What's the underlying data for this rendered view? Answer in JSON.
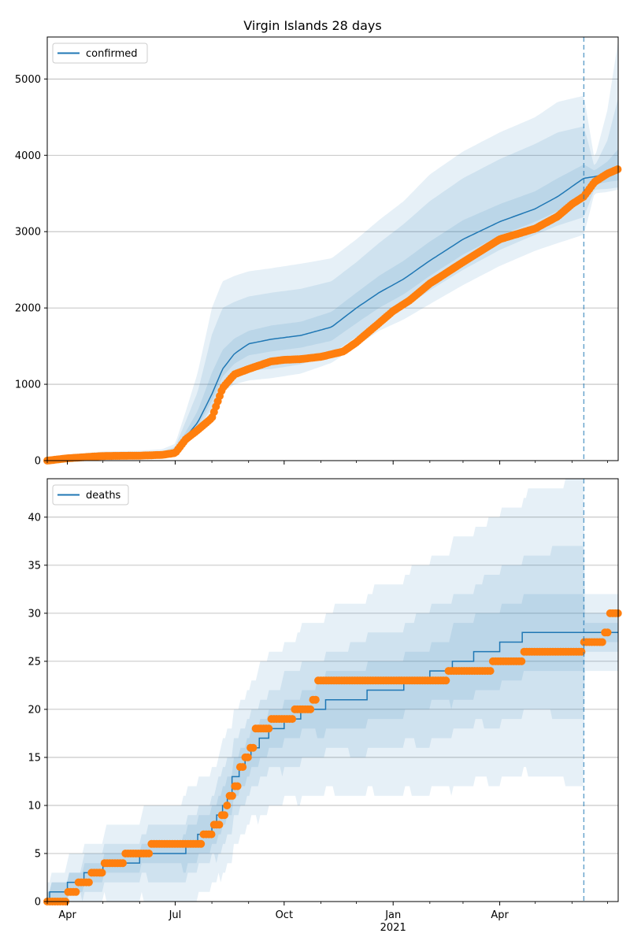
{
  "title": "Virgin Islands 28 days",
  "colors": {
    "model_line": "#1f77b4",
    "observed": "#ff7f0e",
    "band": "#1f77b4",
    "forecast_divider": "#1f77b4",
    "grid": "#b0b0b0"
  },
  "x_tick_labels": [
    {
      "date": "2020-04-01",
      "label": "Apr",
      "sub": ""
    },
    {
      "date": "2020-07-01",
      "label": "Jul",
      "sub": ""
    },
    {
      "date": "2020-10-01",
      "label": "Oct",
      "sub": ""
    },
    {
      "date": "2021-01-01",
      "label": "Jan",
      "sub": "2021"
    },
    {
      "date": "2021-04-01",
      "label": "Apr",
      "sub": ""
    }
  ],
  "x_minor_tick_dates": [
    "2020-03-15",
    "2020-05-01",
    "2020-06-01",
    "2020-08-01",
    "2020-09-01",
    "2020-11-01",
    "2020-12-01",
    "2021-02-01",
    "2021-03-01",
    "2021-05-01",
    "2021-06-01",
    "2021-07-01"
  ],
  "chart_data": [
    {
      "type": "line",
      "name": "confirmed",
      "legend": {
        "label": "confirmed",
        "placement": "upper-left"
      },
      "xlim": [
        "2020-03-15",
        "2021-07-10"
      ],
      "ylim": [
        0,
        5550
      ],
      "yticks": [
        0,
        1000,
        2000,
        3000,
        4000,
        5000
      ],
      "grid": "y",
      "forecast_start": "2021-06-11",
      "model": {
        "x": [
          "2020-03-15",
          "2020-04-01",
          "2020-05-01",
          "2020-06-01",
          "2020-06-20",
          "2020-07-01",
          "2020-07-10",
          "2020-07-20",
          "2020-08-01",
          "2020-08-10",
          "2020-08-20",
          "2020-09-01",
          "2020-09-20",
          "2020-10-15",
          "2020-11-10",
          "2020-12-01",
          "2020-12-20",
          "2021-01-10",
          "2021-02-01",
          "2021-03-01",
          "2021-04-01",
          "2021-05-01",
          "2021-05-20",
          "2021-06-11",
          "2021-06-20",
          "2021-07-01",
          "2021-07-10"
        ],
        "y": [
          0,
          40,
          60,
          70,
          80,
          130,
          310,
          500,
          870,
          1200,
          1400,
          1530,
          1590,
          1640,
          1750,
          2000,
          2200,
          2380,
          2620,
          2900,
          3130,
          3300,
          3460,
          3700,
          3720,
          3760,
          3780
        ]
      },
      "bands": [
        {
          "lower": [
            0,
            20,
            40,
            50,
            60,
            100,
            220,
            350,
            620,
            900,
            1000,
            1050,
            1080,
            1140,
            1280,
            1500,
            1700,
            1850,
            2050,
            2300,
            2550,
            2750,
            2850,
            2960,
            3500,
            3520,
            3550
          ],
          "upper": [
            5,
            80,
            120,
            130,
            150,
            220,
            650,
            1150,
            2000,
            2350,
            2420,
            2480,
            2520,
            2580,
            2650,
            2900,
            3150,
            3400,
            3750,
            4050,
            4300,
            4500,
            4700,
            4780,
            3950,
            4600,
            5500
          ]
        },
        {
          "lower": [
            0,
            25,
            45,
            55,
            65,
            110,
            250,
            400,
            700,
            1000,
            1130,
            1180,
            1200,
            1260,
            1400,
            1620,
            1820,
            2000,
            2230,
            2500,
            2760,
            2960,
            3080,
            3190,
            3550,
            3560,
            3580
          ],
          "upper": [
            3,
            60,
            100,
            110,
            120,
            180,
            520,
            900,
            1650,
            2000,
            2080,
            2150,
            2200,
            2250,
            2350,
            2600,
            2850,
            3100,
            3400,
            3700,
            3950,
            4150,
            4300,
            4380,
            3850,
            4200,
            4750
          ]
        },
        {
          "lower": [
            0,
            30,
            50,
            60,
            70,
            120,
            280,
            450,
            780,
            1100,
            1270,
            1380,
            1430,
            1480,
            1570,
            1800,
            2000,
            2180,
            2420,
            2700,
            2950,
            3130,
            3270,
            3420,
            3620,
            3650,
            3670
          ],
          "upper": [
            2,
            50,
            75,
            85,
            95,
            155,
            380,
            650,
            1150,
            1450,
            1600,
            1700,
            1770,
            1820,
            1950,
            2200,
            2420,
            2620,
            2870,
            3150,
            3360,
            3530,
            3700,
            3880,
            3800,
            3920,
            4080
          ]
        }
      ],
      "observed": {
        "x": [
          "2020-03-15",
          "2020-04-01",
          "2020-04-20",
          "2020-05-01",
          "2020-06-01",
          "2020-06-20",
          "2020-07-01",
          "2020-07-10",
          "2020-07-20",
          "2020-08-01",
          "2020-08-10",
          "2020-08-20",
          "2020-09-01",
          "2020-09-20",
          "2020-10-01",
          "2020-10-15",
          "2020-11-01",
          "2020-11-20",
          "2020-12-01",
          "2020-12-20",
          "2021-01-01",
          "2021-01-15",
          "2021-02-01",
          "2021-03-01",
          "2021-04-01",
          "2021-05-01",
          "2021-05-20",
          "2021-06-01",
          "2021-06-11",
          "2021-06-20",
          "2021-07-01",
          "2021-07-10"
        ],
        "y": [
          0,
          30,
          50,
          60,
          65,
          75,
          100,
          280,
          400,
          560,
          950,
          1130,
          1200,
          1300,
          1320,
          1330,
          1360,
          1430,
          1550,
          1800,
          1960,
          2100,
          2320,
          2600,
          2900,
          3040,
          3200,
          3360,
          3460,
          3650,
          3760,
          3820
        ]
      }
    },
    {
      "type": "line",
      "name": "deaths",
      "legend": {
        "label": "deaths",
        "placement": "upper-left"
      },
      "xlim": [
        "2020-03-15",
        "2021-07-10"
      ],
      "ylim": [
        0,
        44
      ],
      "yticks": [
        0,
        5,
        10,
        15,
        20,
        25,
        30,
        35,
        40
      ],
      "grid": "y",
      "forecast_start": "2021-06-11",
      "step": true,
      "model": {
        "x": [
          "2020-03-15",
          "2020-03-17",
          "2020-03-25",
          "2020-04-01",
          "2020-04-15",
          "2020-05-01",
          "2020-05-10",
          "2020-06-01",
          "2020-07-10",
          "2020-07-20",
          "2020-08-01",
          "2020-08-05",
          "2020-08-10",
          "2020-08-14",
          "2020-08-18",
          "2020-08-24",
          "2020-08-29",
          "2020-09-03",
          "2020-09-10",
          "2020-09-18",
          "2020-10-01",
          "2020-10-15",
          "2020-11-05",
          "2020-11-25",
          "2020-12-10",
          "2020-12-25",
          "2021-01-10",
          "2021-02-01",
          "2021-02-20",
          "2021-03-10",
          "2021-04-01",
          "2021-04-20",
          "2021-06-11",
          "2021-06-25",
          "2021-07-10"
        ],
        "y": [
          0,
          1,
          1,
          2,
          3,
          4,
          4,
          5,
          6,
          7,
          8,
          9,
          10,
          11,
          13,
          14,
          15,
          16,
          17,
          18,
          19,
          20,
          21,
          21,
          22,
          22,
          23,
          24,
          25,
          26,
          27,
          28,
          28,
          28,
          28
        ]
      }
    }
  ]
}
